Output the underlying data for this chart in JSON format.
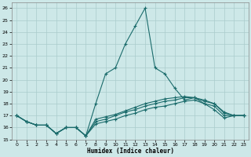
{
  "xlabel": "Humidex (Indice chaleur)",
  "ylabel": "",
  "background_color": "#cde8e8",
  "grid_color": "#b8d8d8",
  "line_color": "#1a6b6b",
  "xlim": [
    -0.5,
    23.5
  ],
  "ylim": [
    15,
    26.5
  ],
  "yticks": [
    15,
    16,
    17,
    18,
    19,
    20,
    21,
    22,
    23,
    24,
    25,
    26
  ],
  "xticks": [
    0,
    1,
    2,
    3,
    4,
    5,
    6,
    7,
    8,
    9,
    10,
    11,
    12,
    13,
    14,
    15,
    16,
    17,
    18,
    19,
    20,
    21,
    22,
    23
  ],
  "series": [
    {
      "x": [
        0,
        1,
        2,
        3,
        4,
        5,
        6,
        7,
        8,
        9,
        10,
        11,
        12,
        13,
        14,
        15,
        16,
        17,
        18,
        19,
        20,
        21,
        22,
        23
      ],
      "y": [
        17.0,
        16.5,
        16.2,
        16.2,
        15.5,
        16.0,
        16.0,
        15.3,
        18.0,
        20.5,
        21.0,
        23.0,
        24.5,
        26.0,
        21.0,
        20.5,
        19.3,
        18.3,
        18.5,
        18.0,
        17.5,
        16.8,
        17.0,
        17.0
      ]
    },
    {
      "x": [
        0,
        1,
        2,
        3,
        4,
        5,
        6,
        7,
        8,
        9,
        10,
        11,
        12,
        13,
        14,
        15,
        16,
        17,
        18,
        19,
        20,
        21,
        22,
        23
      ],
      "y": [
        17.0,
        16.5,
        16.2,
        16.2,
        15.5,
        16.0,
        16.0,
        15.3,
        16.3,
        16.5,
        16.7,
        17.0,
        17.2,
        17.5,
        17.7,
        17.8,
        18.0,
        18.2,
        18.3,
        18.0,
        17.8,
        17.0,
        17.0,
        17.0
      ]
    },
    {
      "x": [
        0,
        1,
        2,
        3,
        4,
        5,
        6,
        7,
        8,
        9,
        10,
        11,
        12,
        13,
        14,
        15,
        16,
        17,
        18,
        19,
        20,
        21,
        22,
        23
      ],
      "y": [
        17.0,
        16.5,
        16.2,
        16.2,
        15.5,
        16.0,
        16.0,
        15.3,
        16.5,
        16.7,
        17.0,
        17.3,
        17.5,
        17.8,
        18.0,
        18.2,
        18.3,
        18.5,
        18.5,
        18.2,
        18.0,
        17.2,
        17.0,
        17.0
      ]
    },
    {
      "x": [
        0,
        1,
        2,
        3,
        4,
        5,
        6,
        7,
        8,
        9,
        10,
        11,
        12,
        13,
        14,
        15,
        16,
        17,
        18,
        19,
        20,
        21,
        22,
        23
      ],
      "y": [
        17.0,
        16.5,
        16.2,
        16.2,
        15.5,
        16.0,
        16.0,
        15.3,
        16.7,
        16.9,
        17.1,
        17.4,
        17.7,
        18.0,
        18.2,
        18.4,
        18.5,
        18.6,
        18.5,
        18.3,
        18.0,
        17.3,
        17.0,
        17.0
      ]
    }
  ]
}
